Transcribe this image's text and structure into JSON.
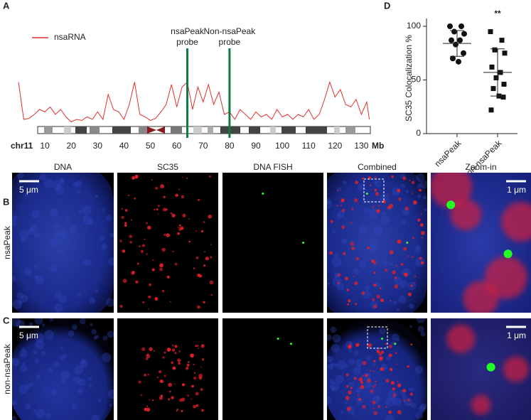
{
  "chart_data": [
    {
      "type": "line",
      "panel": "A",
      "x_start_label": "chr11",
      "x_unit_label": "Mb",
      "xlim": [
        0,
        135
      ],
      "xticks": [
        10,
        20,
        30,
        40,
        50,
        60,
        70,
        80,
        90,
        100,
        110,
        120,
        130
      ],
      "x": [
        0,
        2,
        4,
        6,
        8,
        10,
        12,
        14,
        16,
        18,
        20,
        22,
        24,
        26,
        28,
        30,
        32,
        34,
        36,
        38,
        40,
        42,
        44,
        46,
        48,
        50,
        52,
        54,
        56,
        58,
        60,
        62,
        64,
        66,
        68,
        70,
        72,
        74,
        76,
        78,
        80,
        82,
        84,
        86,
        88,
        90,
        92,
        94,
        96,
        98,
        100,
        102,
        104,
        106,
        108,
        110,
        112,
        114,
        116,
        118,
        120,
        122,
        124,
        126,
        128,
        130,
        132,
        133
      ],
      "series": [
        {
          "name": "nsaRNA",
          "color": "#e03030",
          "values": [
            8.5,
            1.0,
            1.2,
            2.0,
            3.0,
            2.5,
            3.5,
            2.0,
            3.0,
            1.5,
            0.5,
            1.0,
            0.8,
            1.5,
            1.0,
            2.5,
            1.0,
            6.0,
            3.0,
            2.5,
            1.0,
            4.0,
            8.5,
            2.0,
            1.5,
            0.8,
            1.2,
            2.5,
            4.0,
            8.0,
            3.5,
            7.5,
            8.5,
            3.0,
            7.5,
            4.5,
            8.0,
            4.0,
            6.5,
            2.0,
            2.5,
            1.0,
            3.0,
            2.0,
            1.0,
            2.5,
            1.5,
            2.0,
            1.0,
            3.0,
            1.5,
            2.0,
            1.0,
            2.0,
            1.5,
            3.0,
            1.0,
            2.0,
            5.0,
            8.5,
            5.5,
            7.0,
            4.0,
            3.5,
            5.0,
            2.0,
            4.5,
            1.0
          ]
        }
      ],
      "probes": [
        {
          "label": [
            "nsaPeak",
            "probe"
          ],
          "x": 64,
          "color": "#0e7a45"
        },
        {
          "label": [
            "Non-nsaPeak",
            "probe"
          ],
          "x": 80,
          "color": "#0e7a45"
        }
      ]
    },
    {
      "type": "scatter",
      "panel": "D",
      "y_label": "SC35 Colocalization %",
      "ylim": [
        0,
        100
      ],
      "yticks": [
        0,
        50,
        100
      ],
      "categories": [
        "nsaPeak",
        "non-nsaPeak"
      ],
      "groups": [
        {
          "marker": "circle",
          "color": "#111",
          "values": [
            100,
            100,
            95,
            93,
            87,
            87,
            83,
            75,
            70,
            67
          ],
          "mean": 84,
          "sd": 12
        },
        {
          "marker": "square",
          "color": "#111",
          "values": [
            95,
            87,
            78,
            75,
            62,
            57,
            52,
            46,
            42,
            35,
            34,
            22
          ],
          "mean": 57,
          "sd": 22,
          "annotation": "**"
        }
      ]
    }
  ],
  "microscopy": {
    "panel_labels": [
      "B",
      "C"
    ],
    "columns": [
      "DNA",
      "SC35",
      "DNA FISH",
      "Combined",
      "Zoom-in"
    ],
    "rows": [
      {
        "label": "nsaPeak",
        "scale_overview": "5 μm",
        "scale_zoom": "1 μm"
      },
      {
        "label": "non-nsaPeak",
        "scale_overview": "5 μm",
        "scale_zoom": "1 μm"
      }
    ]
  }
}
